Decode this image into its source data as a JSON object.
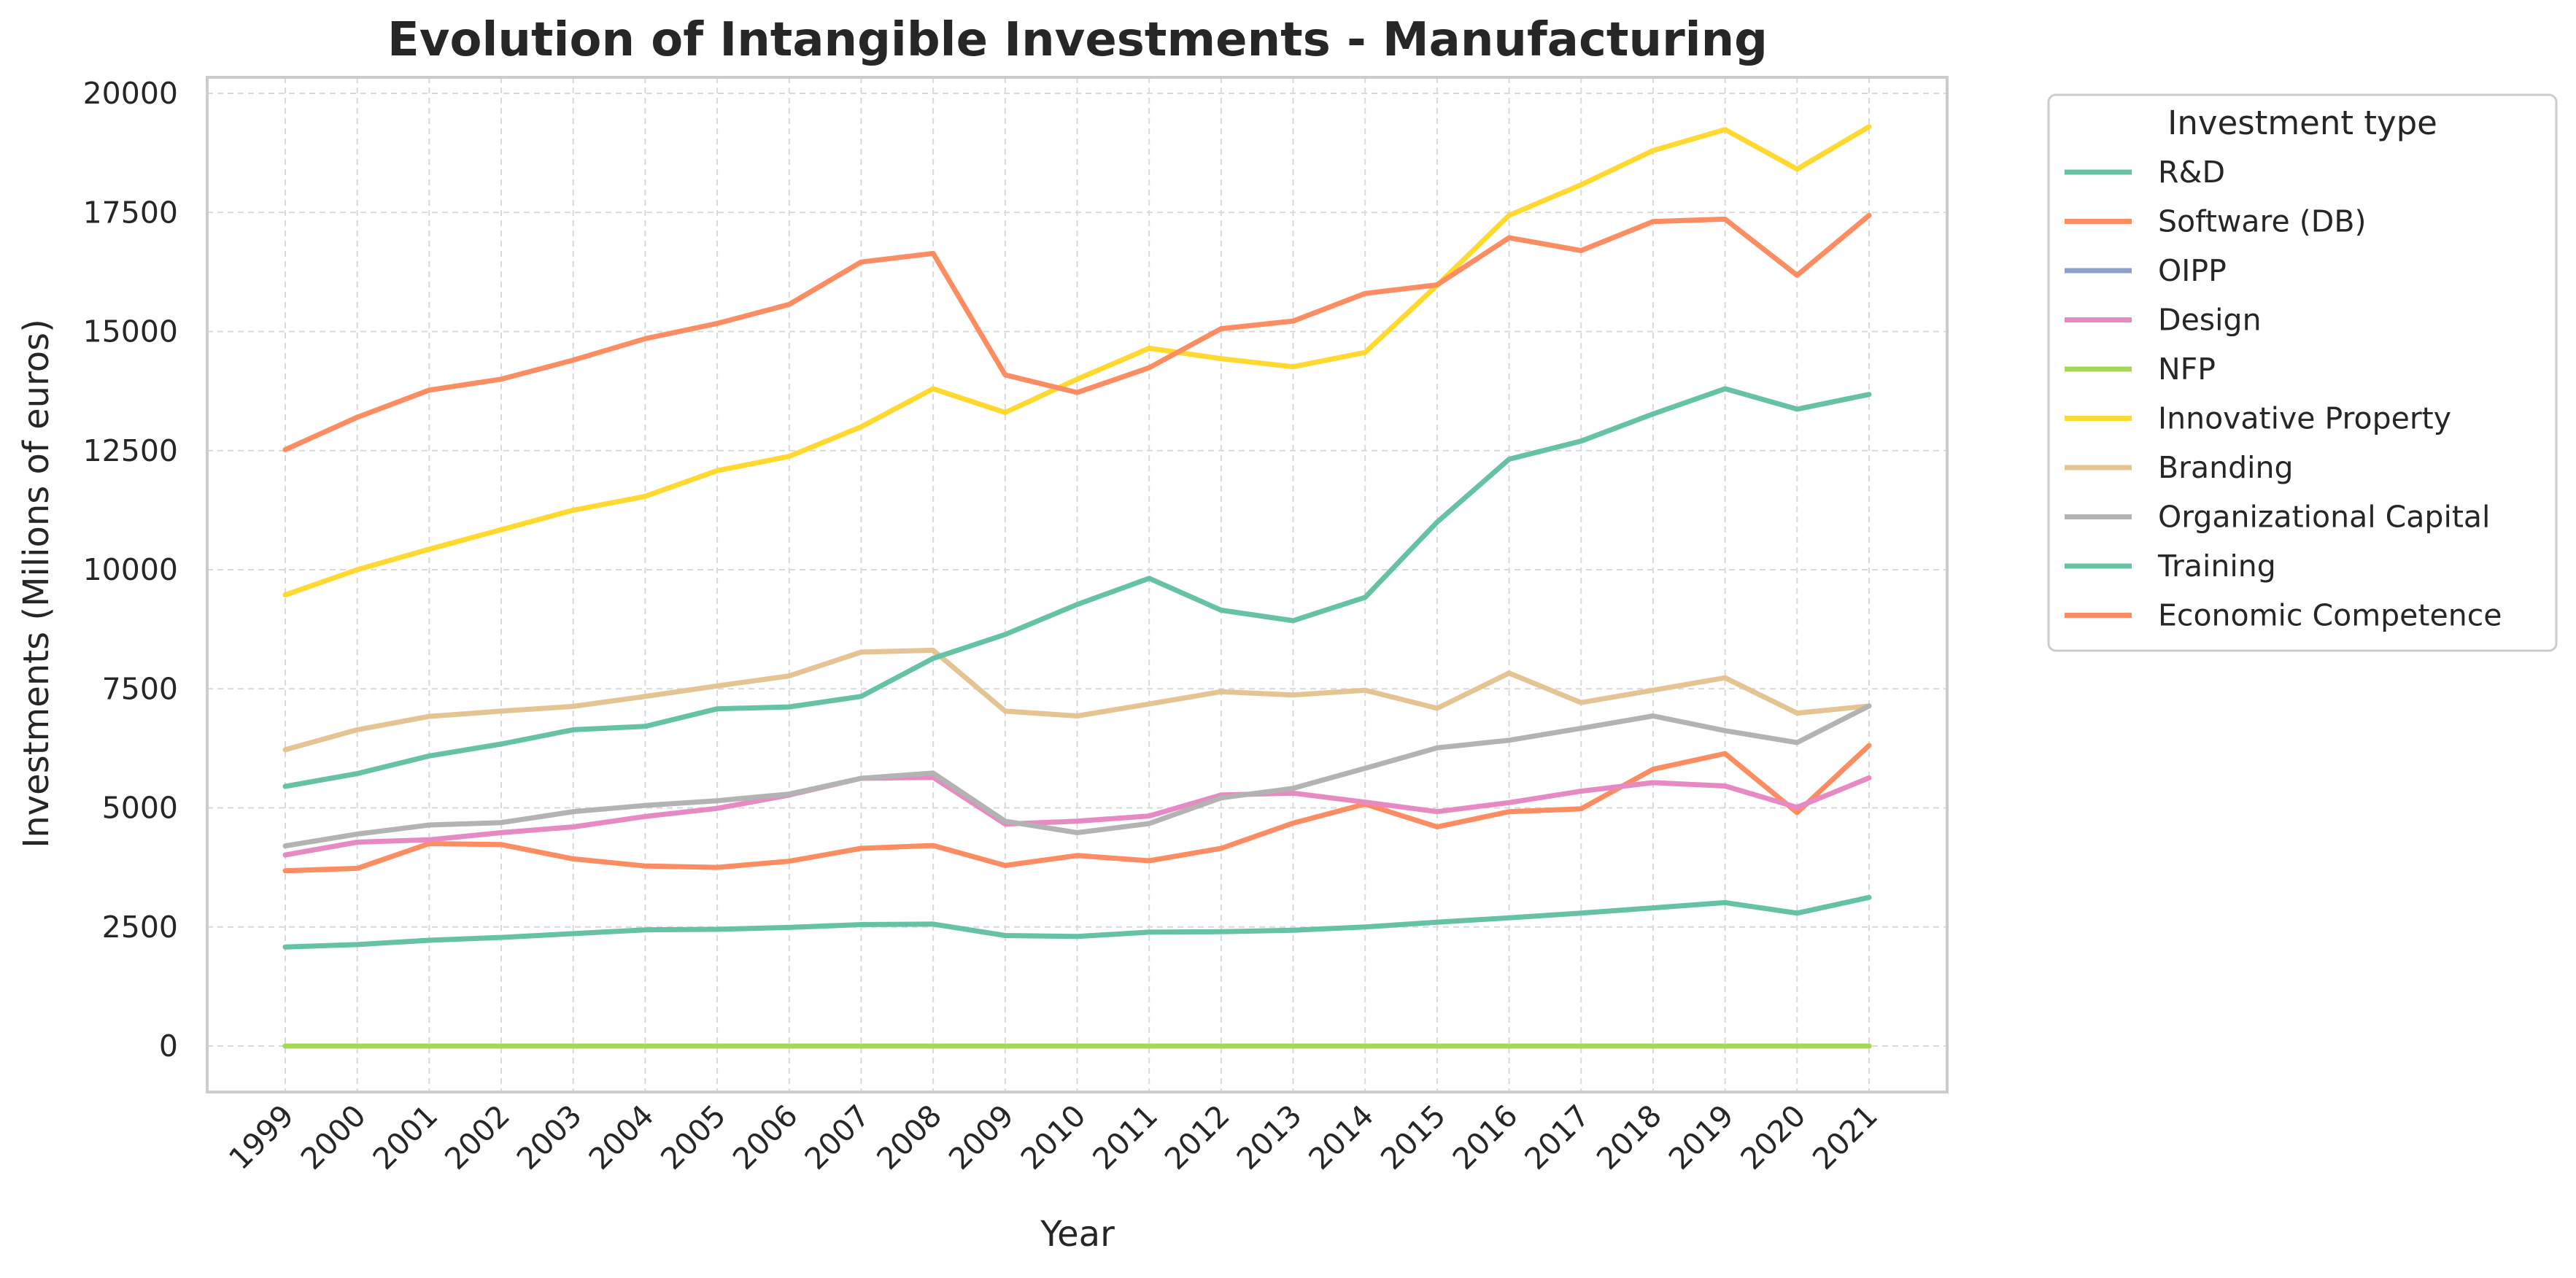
{
  "chart_data": {
    "type": "line",
    "title": "Evolution of Intangible Investments - Manufacturing",
    "xlabel": "Year",
    "ylabel": "Investments (Milions of euros)",
    "legend_title": "Investment type",
    "legend_position": "outside-right-top",
    "grid": true,
    "ylim": [
      -1000,
      20300
    ],
    "yticks": [
      0,
      2500,
      5000,
      7500,
      10000,
      12500,
      15000,
      17500,
      20000
    ],
    "categories": [
      "1999",
      "2000",
      "2001",
      "2002",
      "2003",
      "2004",
      "2005",
      "2006",
      "2007",
      "2008",
      "2009",
      "2010",
      "2011",
      "2012",
      "2013",
      "2014",
      "2015",
      "2016",
      "2017",
      "2018",
      "2019",
      "2020",
      "2021"
    ],
    "series": [
      {
        "name": "R&D",
        "color": "#66c2a5",
        "values": [
          2080,
          2130,
          2220,
          2280,
          2360,
          2440,
          2450,
          2490,
          2550,
          2560,
          2320,
          2300,
          2390,
          2400,
          2430,
          2500,
          2600,
          2690,
          2790,
          2900,
          3010,
          2790,
          3120
        ]
      },
      {
        "name": "Software (DB)",
        "color": "#fc8d62",
        "values": [
          3680,
          3730,
          4250,
          4230,
          3930,
          3780,
          3750,
          3880,
          4150,
          4210,
          3790,
          4000,
          3890,
          4150,
          4680,
          5080,
          4600,
          4920,
          4980,
          5810,
          6140,
          4900,
          6310
        ]
      },
      {
        "name": "OIPP",
        "color": "#8da0cb",
        "values": [
          0,
          0,
          0,
          0,
          0,
          0,
          0,
          0,
          0,
          0,
          0,
          0,
          0,
          0,
          0,
          0,
          0,
          0,
          0,
          0,
          0,
          0,
          0
        ]
      },
      {
        "name": "Design",
        "color": "#e78ac3",
        "values": [
          4010,
          4280,
          4330,
          4480,
          4600,
          4820,
          4990,
          5270,
          5620,
          5640,
          4660,
          4720,
          4830,
          5270,
          5310,
          5120,
          4920,
          5110,
          5350,
          5530,
          5460,
          5010,
          5630
        ]
      },
      {
        "name": "NFP",
        "color": "#a6d854",
        "values": [
          0,
          0,
          0,
          0,
          0,
          0,
          0,
          0,
          0,
          0,
          0,
          0,
          0,
          0,
          0,
          0,
          0,
          0,
          0,
          0,
          0,
          0,
          0
        ]
      },
      {
        "name": "Innovative Property",
        "color": "#ffd92f",
        "values": [
          9470,
          10000,
          10430,
          10840,
          11250,
          11540,
          12080,
          12380,
          13000,
          13800,
          13300,
          14000,
          14650,
          14430,
          14260,
          14560,
          15970,
          17440,
          18080,
          18800,
          19240,
          18410,
          19300
        ]
      },
      {
        "name": "Branding",
        "color": "#e5c494",
        "values": [
          6220,
          6640,
          6920,
          7030,
          7130,
          7340,
          7560,
          7770,
          8270,
          8310,
          7030,
          6930,
          7180,
          7440,
          7370,
          7470,
          7090,
          7830,
          7210,
          7470,
          7730,
          6990,
          7140
        ]
      },
      {
        "name": "Organizational Capital",
        "color": "#b3b3b3",
        "values": [
          4200,
          4450,
          4640,
          4690,
          4920,
          5050,
          5150,
          5290,
          5620,
          5730,
          4720,
          4480,
          4670,
          5210,
          5410,
          5830,
          6260,
          6420,
          6670,
          6930,
          6620,
          6370,
          7140
        ]
      },
      {
        "name": "Training",
        "color": "#66c2a5",
        "values": [
          5450,
          5720,
          6090,
          6340,
          6640,
          6710,
          7080,
          7120,
          7340,
          8140,
          8640,
          9270,
          9820,
          9150,
          8930,
          9420,
          11000,
          12320,
          12700,
          13270,
          13800,
          13370,
          13680
        ]
      },
      {
        "name": "Economic Competence",
        "color": "#fc8d62",
        "values": [
          12520,
          13200,
          13770,
          14000,
          14400,
          14850,
          15170,
          15570,
          16460,
          16640,
          14090,
          13720,
          14240,
          15060,
          15220,
          15800,
          15980,
          16970,
          16700,
          17310,
          17360,
          16180,
          17440
        ]
      }
    ]
  }
}
